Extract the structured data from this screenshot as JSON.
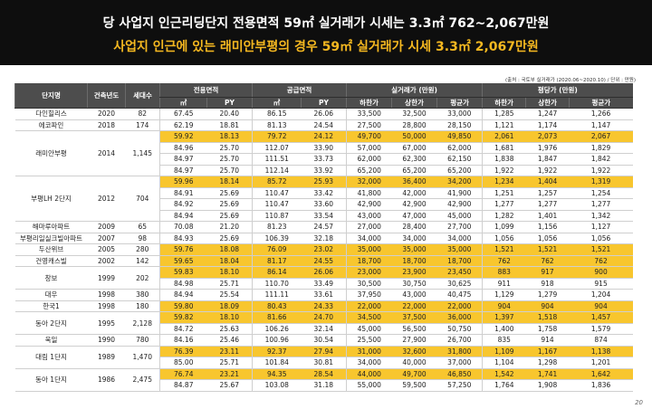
{
  "banner": {
    "line1": "당 사업지 인근리딩단지 전용면적 59㎡ 실거래가 시세는 3.3㎡ 762~2,067만원",
    "line2": "사업지 인근에 있는 래미안부평의 경우 59㎡ 실거래가 시세 3.3㎡ 2,067만원"
  },
  "source": "(출처 : 국토부 실거래가 (2020.06~2020.10) / 단위 : 만원)",
  "header": {
    "complex": "단지명",
    "year": "건축년도",
    "households": "세대수",
    "exclusive": "전용면적",
    "supply": "공급면적",
    "real_price": "실거래가 (만원)",
    "unit_price": "평당가 (만원)",
    "sqm": "㎡",
    "py": "PY",
    "low": "하한가",
    "high": "상한가",
    "avg": "평균가"
  },
  "rows": [
    {
      "name": "다인힐리스",
      "year": "2020",
      "hh": "82",
      "span": 1,
      "hl": false,
      "v": [
        "67.45",
        "20.40",
        "86.15",
        "26.06",
        "33,500",
        "32,500",
        "33,000",
        "1,285",
        "1,247",
        "1,266"
      ]
    },
    {
      "name": "에코파인",
      "year": "2018",
      "hh": "174",
      "span": 1,
      "hl": false,
      "v": [
        "62.19",
        "18.81",
        "81.13",
        "24.54",
        "27,500",
        "28,800",
        "28,150",
        "1,121",
        "1,174",
        "1,147"
      ]
    },
    {
      "name": "래미안부평",
      "year": "2014",
      "hh": "1,145",
      "span": 4,
      "hl": true,
      "v": [
        "59.92",
        "18.13",
        "79.72",
        "24.12",
        "49,700",
        "50,000",
        "49,850",
        "2,061",
        "2,073",
        "2,067"
      ]
    },
    {
      "hl": false,
      "v": [
        "84.96",
        "25.70",
        "112.07",
        "33.90",
        "57,000",
        "67,000",
        "62,000",
        "1,681",
        "1,976",
        "1,829"
      ]
    },
    {
      "hl": false,
      "v": [
        "84.97",
        "25.70",
        "111.51",
        "33.73",
        "62,000",
        "62,300",
        "62,150",
        "1,838",
        "1,847",
        "1,842"
      ]
    },
    {
      "hl": false,
      "v": [
        "84.97",
        "25.70",
        "112.14",
        "33.92",
        "65,200",
        "65,200",
        "65,200",
        "1,922",
        "1,922",
        "1,922"
      ]
    },
    {
      "name": "부평LH 2단지",
      "year": "2012",
      "hh": "704",
      "span": 4,
      "hl": true,
      "v": [
        "59.96",
        "18.14",
        "85.72",
        "25.93",
        "32,000",
        "36,400",
        "34,200",
        "1,234",
        "1,404",
        "1,319"
      ]
    },
    {
      "hl": false,
      "v": [
        "84.91",
        "25.69",
        "110.47",
        "33.42",
        "41,800",
        "42,000",
        "41,900",
        "1,251",
        "1,257",
        "1,254"
      ]
    },
    {
      "hl": false,
      "v": [
        "84.92",
        "25.69",
        "110.47",
        "33.60",
        "42,900",
        "42,900",
        "42,900",
        "1,277",
        "1,277",
        "1,277"
      ]
    },
    {
      "hl": false,
      "v": [
        "84.94",
        "25.69",
        "110.87",
        "33.54",
        "43,000",
        "47,000",
        "45,000",
        "1,282",
        "1,401",
        "1,342"
      ]
    },
    {
      "name": "해마루아파트",
      "year": "2009",
      "hh": "65",
      "span": 1,
      "hl": false,
      "v": [
        "70.08",
        "21.20",
        "81.23",
        "24.57",
        "27,000",
        "28,400",
        "27,700",
        "1,099",
        "1,156",
        "1,127"
      ]
    },
    {
      "name": "부평리일실크빌아파트",
      "year": "2007",
      "hh": "98",
      "span": 1,
      "hl": false,
      "v": [
        "84.93",
        "25.69",
        "106.39",
        "32.18",
        "34,000",
        "34,000",
        "34,000",
        "1,056",
        "1,056",
        "1,056"
      ]
    },
    {
      "name": "두산위브",
      "year": "2005",
      "hh": "280",
      "span": 1,
      "hl": true,
      "v": [
        "59.76",
        "18.08",
        "76.09",
        "23.02",
        "35,000",
        "35,000",
        "35,000",
        "1,521",
        "1,521",
        "1,521"
      ]
    },
    {
      "name": "건영캐스빌",
      "year": "2002",
      "hh": "142",
      "span": 1,
      "hl": true,
      "v": [
        "59.65",
        "18.04",
        "81.17",
        "24.55",
        "18,700",
        "18,700",
        "18,700",
        "762",
        "762",
        "762"
      ]
    },
    {
      "name": "창보",
      "year": "1999",
      "hh": "202",
      "span": 2,
      "hl": true,
      "v": [
        "59.83",
        "18.10",
        "86.14",
        "26.06",
        "23,000",
        "23,900",
        "23,450",
        "883",
        "917",
        "900"
      ]
    },
    {
      "hl": false,
      "v": [
        "84.98",
        "25.71",
        "110.70",
        "33.49",
        "30,500",
        "30,750",
        "30,625",
        "911",
        "918",
        "915"
      ]
    },
    {
      "name": "대우",
      "year": "1998",
      "hh": "380",
      "span": 1,
      "hl": false,
      "v": [
        "84.94",
        "25.54",
        "111.11",
        "33.61",
        "37,950",
        "43,000",
        "40,475",
        "1,129",
        "1,279",
        "1,204"
      ]
    },
    {
      "name": "한국1",
      "year": "1998",
      "hh": "180",
      "span": 1,
      "hl": true,
      "v": [
        "59.80",
        "18.09",
        "80.43",
        "24.33",
        "22,000",
        "22,000",
        "22,000",
        "904",
        "904",
        "904"
      ]
    },
    {
      "name": "동아 2단지",
      "year": "1995",
      "hh": "2,128",
      "span": 2,
      "hl": true,
      "v": [
        "59.82",
        "18.10",
        "81.66",
        "24.70",
        "34,500",
        "37,500",
        "36,000",
        "1,397",
        "1,518",
        "1,457"
      ]
    },
    {
      "hl": false,
      "v": [
        "84.72",
        "25.63",
        "106.26",
        "32.14",
        "45,000",
        "56,500",
        "50,750",
        "1,400",
        "1,758",
        "1,579"
      ]
    },
    {
      "name": "욱일",
      "year": "1990",
      "hh": "780",
      "span": 1,
      "hl": false,
      "v": [
        "84.16",
        "25.46",
        "100.96",
        "30.54",
        "25,500",
        "27,900",
        "26,700",
        "835",
        "914",
        "874"
      ]
    },
    {
      "name": "대림 1단지",
      "year": "1989",
      "hh": "1,470",
      "span": 2,
      "hl": true,
      "v": [
        "76.39",
        "23.11",
        "92.37",
        "27.94",
        "31,000",
        "32,600",
        "31,800",
        "1,109",
        "1,167",
        "1,138"
      ]
    },
    {
      "hl": false,
      "v": [
        "85.00",
        "25.71",
        "101.84",
        "30.81",
        "34,000",
        "40,000",
        "37,000",
        "1,104",
        "1,298",
        "1,201"
      ]
    },
    {
      "name": "동아 1단지",
      "year": "1986",
      "hh": "2,475",
      "span": 2,
      "hl": true,
      "v": [
        "76.74",
        "23.21",
        "94.35",
        "28.54",
        "44,000",
        "49,700",
        "46,850",
        "1,542",
        "1,741",
        "1,642"
      ]
    },
    {
      "hl": false,
      "v": [
        "84.87",
        "25.67",
        "103.08",
        "31.18",
        "55,000",
        "59,500",
        "57,250",
        "1,764",
        "1,908",
        "1,836"
      ]
    }
  ],
  "colors": {
    "banner": "#0e0e0e",
    "highlight": "#f8c62e",
    "header": "#4d4d4d",
    "subtitle": "#f5b820"
  },
  "page_number": "20"
}
